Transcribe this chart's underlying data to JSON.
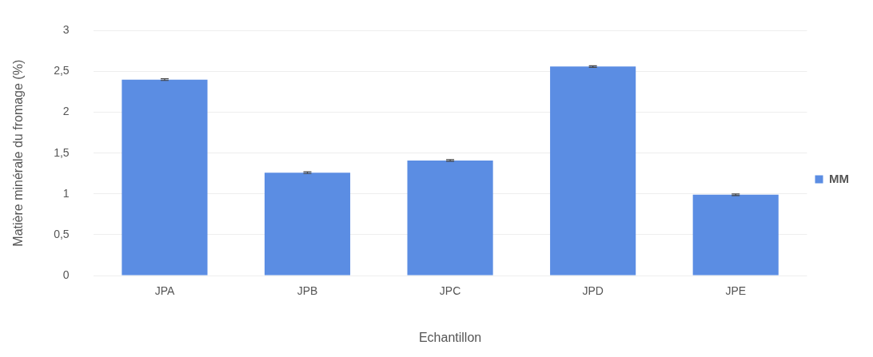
{
  "chart_data": {
    "type": "bar",
    "xlabel": "Echantillon",
    "ylabel": "Matière minérale du fromage (%)",
    "categories": [
      "JPA",
      "JPB",
      "JPC",
      "JPD",
      "JPE"
    ],
    "series": [
      {
        "name": "MM",
        "color": "#5b8de3",
        "values": [
          2.4,
          1.26,
          1.41,
          2.56,
          0.99
        ],
        "errors": [
          0.01,
          0.01,
          0.01,
          0.01,
          0.01
        ]
      }
    ],
    "ylim": [
      0,
      3
    ],
    "yticks": [
      0,
      {
        "value": 0.5,
        "label": "0,5"
      },
      1,
      {
        "value": 1.5,
        "label": "1,5"
      },
      2,
      {
        "value": 2.5,
        "label": "2,5"
      },
      3
    ],
    "grid": "y",
    "legend": "right"
  }
}
